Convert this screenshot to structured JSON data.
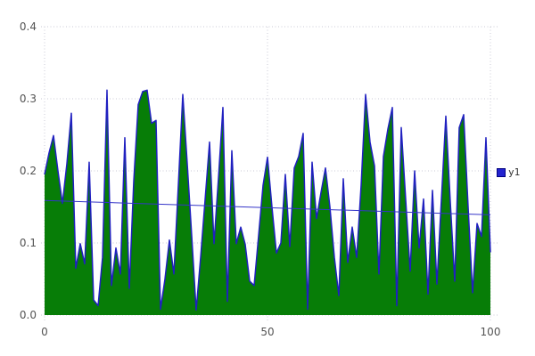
{
  "legend": {
    "label": "y1"
  },
  "colors": {
    "background": "#ffffff",
    "area_fill": "#077d07",
    "area_stroke": "#2020c0",
    "trend_line": "#3535c8",
    "grid": "#c9c9d6",
    "axis_text": "#545454",
    "legend_text": "#333333",
    "legend_marker": "#2323cf"
  },
  "chart_data": {
    "type": "area",
    "title": "",
    "xlabel": "",
    "ylabel": "",
    "xlim": [
      0,
      100
    ],
    "ylim": [
      0,
      0.4
    ],
    "grid": "dotted",
    "legend_position": "right",
    "xticks": [
      {
        "value": 0,
        "label": "0"
      },
      {
        "value": 50,
        "label": "50"
      },
      {
        "value": 100,
        "label": "100"
      }
    ],
    "yticks": [
      {
        "value": 0.0,
        "label": "0.0"
      },
      {
        "value": 0.1,
        "label": "0.1"
      },
      {
        "value": 0.2,
        "label": "0.2"
      },
      {
        "value": 0.3,
        "label": "0.3"
      },
      {
        "value": 0.4,
        "label": "0.4"
      }
    ],
    "series": [
      {
        "name": "y1",
        "style": "filled-area",
        "x_start": 0,
        "x_step": 1,
        "values": [
          0.195,
          0.225,
          0.249,
          0.2,
          0.155,
          0.21,
          0.28,
          0.065,
          0.099,
          0.071,
          0.212,
          0.021,
          0.013,
          0.08,
          0.312,
          0.041,
          0.093,
          0.057,
          0.246,
          0.037,
          0.186,
          0.292,
          0.31,
          0.312,
          0.266,
          0.27,
          0.008,
          0.05,
          0.104,
          0.057,
          0.18,
          0.306,
          0.21,
          0.11,
          0.007,
          0.08,
          0.16,
          0.24,
          0.099,
          0.19,
          0.288,
          0.019,
          0.228,
          0.099,
          0.122,
          0.098,
          0.047,
          0.041,
          0.11,
          0.18,
          0.219,
          0.15,
          0.086,
          0.1,
          0.195,
          0.095,
          0.204,
          0.22,
          0.252,
          0.008,
          0.212,
          0.134,
          0.17,
          0.204,
          0.15,
          0.08,
          0.027,
          0.189,
          0.073,
          0.122,
          0.08,
          0.18,
          0.306,
          0.24,
          0.207,
          0.057,
          0.22,
          0.258,
          0.288,
          0.013,
          0.26,
          0.16,
          0.061,
          0.2,
          0.093,
          0.161,
          0.029,
          0.173,
          0.043,
          0.16,
          0.276,
          0.157,
          0.047,
          0.26,
          0.278,
          0.15,
          0.031,
          0.127,
          0.109,
          0.246,
          0.087
        ]
      },
      {
        "name": "trend",
        "style": "line",
        "points": [
          [
            0,
            0.159
          ],
          [
            100,
            0.139
          ]
        ]
      }
    ]
  }
}
